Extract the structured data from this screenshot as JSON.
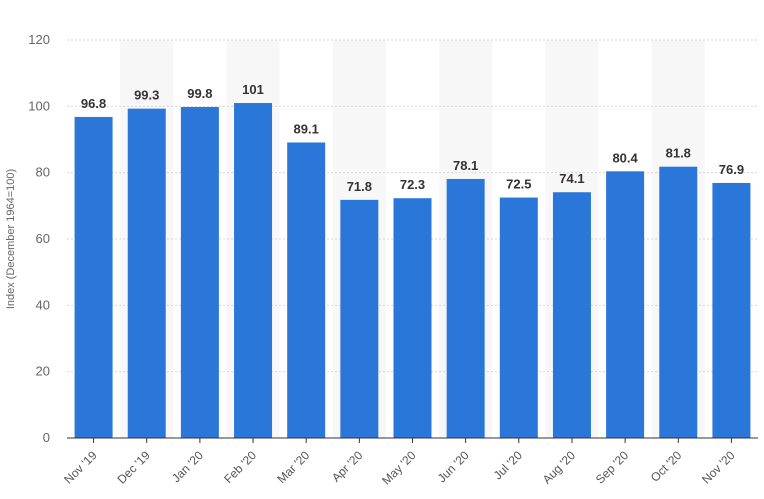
{
  "chart_data": {
    "type": "bar",
    "title": "",
    "xlabel": "",
    "ylabel": "Index (December 1964=100)",
    "categories": [
      "Nov '19",
      "Dec '19",
      "Jan '20",
      "Feb '20",
      "Mar '20",
      "Apr '20",
      "May '20",
      "Jun '20",
      "Jul '20",
      "Aug '20",
      "Sep '20",
      "Oct '20",
      "Nov '20"
    ],
    "values": [
      96.8,
      99.3,
      99.8,
      101,
      89.1,
      71.8,
      72.3,
      78.1,
      72.5,
      74.1,
      80.4,
      81.8,
      76.9
    ],
    "value_labels": [
      "96.8",
      "99.3",
      "99.8",
      "101",
      "89.1",
      "71.8",
      "72.3",
      "78.1",
      "72.5",
      "74.1",
      "80.4",
      "81.8",
      "76.9"
    ],
    "ylim": [
      0,
      120
    ],
    "yticks": [
      0,
      20,
      40,
      60,
      80,
      100,
      120
    ],
    "ytick_labels": [
      "0",
      "20",
      "40",
      "60",
      "80",
      "100",
      "120"
    ],
    "grid": true,
    "legend": "none",
    "colors": {
      "bar": "#2b77d9",
      "band": "#f7f7f7",
      "grid": "#d7d7d7",
      "axis": "#333333"
    }
  }
}
